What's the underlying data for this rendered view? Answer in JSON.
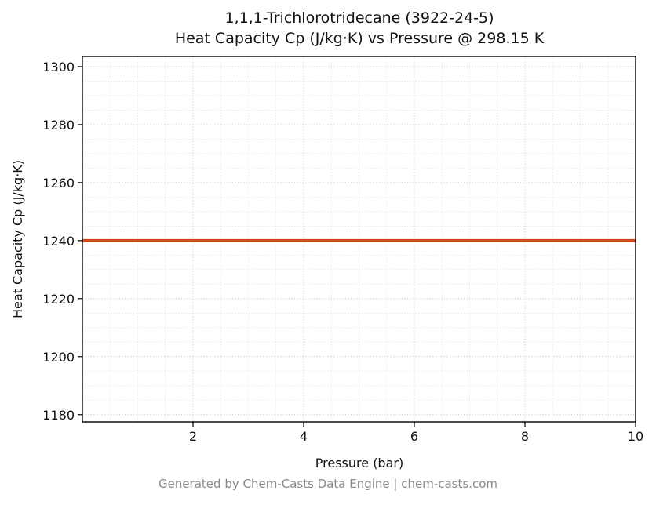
{
  "page": {
    "footer": "Generated by Chem-Casts Data Engine | chem-casts.com"
  },
  "chart_data": {
    "type": "line",
    "title_line1": "1,1,1-Trichlorotridecane (3922-24-5)",
    "title_line2": "Heat Capacity Cp (J/kg·K) vs Pressure @ 298.15 K",
    "xlabel": "Pressure (bar)",
    "ylabel": "Heat Capacity Cp (J/kg·K)",
    "xlim": [
      0,
      10
    ],
    "ylim": [
      1177.5,
      1303.5
    ],
    "xticks": [
      2,
      4,
      6,
      8,
      10
    ],
    "yticks": [
      1180,
      1200,
      1220,
      1240,
      1260,
      1280,
      1300
    ],
    "minor_x_step": 0.5,
    "minor_y_step": 5,
    "grid": true,
    "legend": "none",
    "series": [
      {
        "name": "Cp",
        "color": "#d1491e",
        "line_width": 4,
        "x": [
          0,
          10
        ],
        "y": [
          1240,
          1240
        ]
      }
    ]
  }
}
